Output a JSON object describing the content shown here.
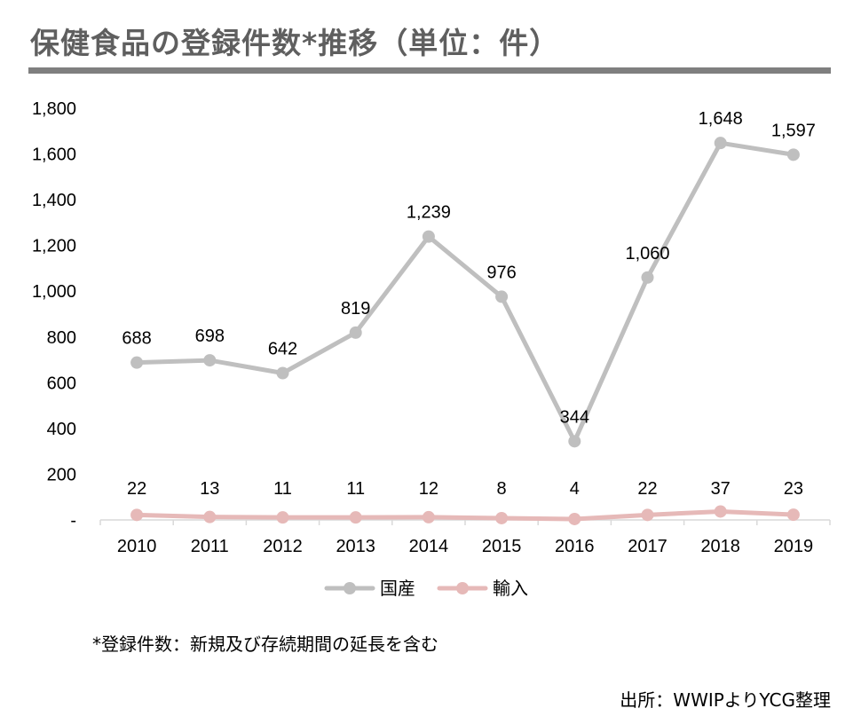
{
  "title": "保健食品の登録件数*推移（単位：件）",
  "footnote": "*登録件数：新規及び存続期間の延長を含む",
  "source": "出所：WWIPよりYCG整理",
  "colors": {
    "domestic": "#bfbfbf",
    "import": "#e6b9b8",
    "title": "#5f5f5f",
    "rule": "#7f7f7f",
    "axis": "#d9d9d9"
  },
  "chart_data": {
    "type": "line",
    "categories": [
      "2010",
      "2011",
      "2012",
      "2013",
      "2014",
      "2015",
      "2016",
      "2017",
      "2018",
      "2019"
    ],
    "series": [
      {
        "name": "国産",
        "values": [
          688,
          698,
          642,
          819,
          1239,
          976,
          344,
          1060,
          1648,
          1597
        ],
        "labels": [
          "688",
          "698",
          "642",
          "819",
          "1,239",
          "976",
          "344",
          "1,060",
          "1,648",
          "1,597"
        ]
      },
      {
        "name": "輸入",
        "values": [
          22,
          13,
          11,
          11,
          12,
          8,
          4,
          22,
          37,
          23
        ],
        "labels": [
          "22",
          "13",
          "11",
          "11",
          "12",
          "8",
          "4",
          "22",
          "37",
          "23"
        ]
      }
    ],
    "ylim": [
      0,
      1800
    ],
    "yticks": [
      0,
      200,
      400,
      600,
      800,
      1000,
      1200,
      1400,
      1600,
      1800
    ],
    "ytick_labels": [
      "-",
      "200",
      "400",
      "600",
      "800",
      "1,000",
      "1,200",
      "1,400",
      "1,600",
      "1,800"
    ],
    "grid": false,
    "legend_position": "bottom"
  }
}
